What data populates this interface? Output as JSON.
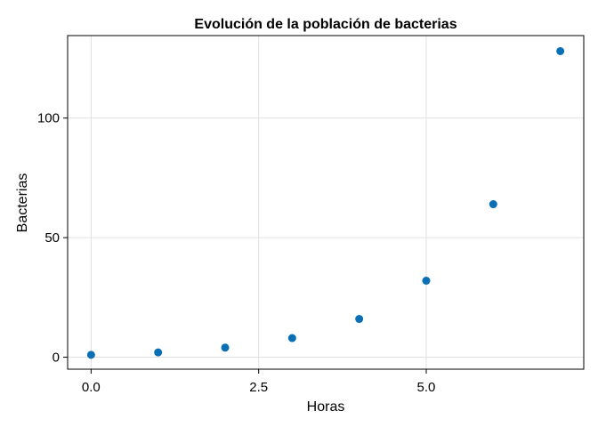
{
  "chart_data": {
    "type": "scatter",
    "title": "Evolución de la población de bacterias",
    "xlabel": "Horas",
    "ylabel": "Bacterias",
    "x": [
      0,
      1,
      2,
      3,
      4,
      5,
      6,
      7
    ],
    "y": [
      1,
      2,
      4,
      8,
      16,
      32,
      64,
      128
    ],
    "xlim": [
      -0.35,
      7.35
    ],
    "ylim": [
      -5,
      134.5
    ],
    "xticks": [
      0.0,
      2.5,
      5.0
    ],
    "xtick_labels": [
      "0.0",
      "2.5",
      "5.0"
    ],
    "yticks": [
      0,
      50,
      100
    ],
    "ytick_labels": [
      "0",
      "50",
      "100"
    ],
    "grid": true,
    "marker_color": "#0a6fb4"
  }
}
